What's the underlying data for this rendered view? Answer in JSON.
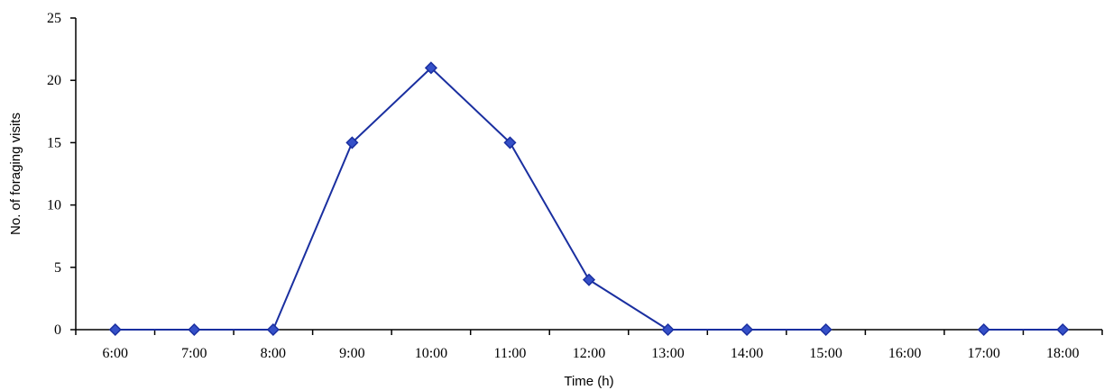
{
  "chart_data": {
    "type": "line",
    "title": "",
    "xlabel": "Time (h)",
    "ylabel": "No. of foraging visits",
    "categories": [
      "6:00",
      "7:00",
      "8:00",
      "9:00",
      "10:00",
      "11:00",
      "12:00",
      "13:00",
      "14:00",
      "15:00",
      "16:00",
      "17:00",
      "18:00"
    ],
    "series": [
      {
        "values": [
          0,
          0,
          0,
          15,
          21,
          15,
          4,
          0,
          0,
          0,
          null,
          0,
          0
        ],
        "color": "#1a2fa0",
        "marker": "diamond"
      }
    ],
    "ylim": [
      0,
      25
    ],
    "yticks": [
      0,
      5,
      10,
      15,
      20,
      25
    ],
    "grid": false,
    "legend": "none"
  }
}
